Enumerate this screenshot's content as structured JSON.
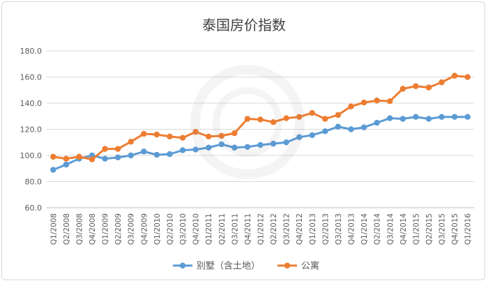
{
  "chart_data": {
    "type": "line",
    "title": "泰国房价指数",
    "ylim": [
      60,
      180
    ],
    "yticks": [
      "60.0",
      "80.0",
      "100.0",
      "120.0",
      "140.0",
      "160.0",
      "180.0"
    ],
    "grid": true,
    "legend_position": "bottom",
    "categories": [
      "Q1/2008",
      "Q2/2008",
      "Q3/2008",
      "Q4/2008",
      "Q1/2009",
      "Q2/2009",
      "Q3/2009",
      "Q4/2009",
      "Q1/2010",
      "Q2/2010",
      "Q3/2010",
      "Q4/2010",
      "Q1/2011",
      "Q2/2011",
      "Q3/2011",
      "Q4/2011",
      "Q1/2012",
      "Q2/2012",
      "Q3/2012",
      "Q4/2012",
      "Q1/2013",
      "Q2/2013",
      "Q3/2013",
      "Q4/2013",
      "Q1/2014",
      "Q2/2014",
      "Q3/2014",
      "Q4/2014",
      "Q1/2015",
      "Q2/2015",
      "Q3/2015",
      "Q4/2015",
      "Q1/2016"
    ],
    "series": [
      {
        "name": "别墅（含土地）",
        "color": "#5b9bd5",
        "values": [
          89,
          93,
          97.5,
          100,
          97.5,
          98.5,
          100,
          103,
          100.5,
          101,
          104,
          104.5,
          106,
          108.5,
          106,
          106.5,
          108,
          109,
          110,
          114,
          115.5,
          118.5,
          122,
          120,
          121.5,
          125,
          128.5,
          128,
          129.5,
          128,
          129.5,
          129.5,
          129.5
        ]
      },
      {
        "name": "公寓",
        "color": "#ed7d31",
        "values": [
          99,
          97.5,
          99,
          97,
          105,
          105,
          110.5,
          116.5,
          116,
          114.5,
          113.5,
          118,
          114.5,
          115,
          117,
          128,
          127.5,
          125.5,
          128.5,
          129.5,
          132.5,
          128,
          131,
          137.5,
          140.5,
          142,
          141.5,
          151,
          153,
          152,
          156,
          161,
          160
        ]
      }
    ]
  }
}
